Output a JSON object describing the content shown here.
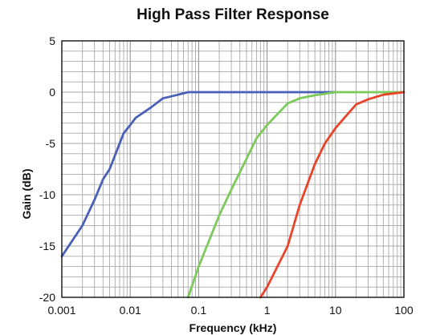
{
  "chart_data": {
    "type": "line",
    "title": "High Pass Filter Response",
    "xlabel": "Frequency (kHz)",
    "ylabel": "Gain (dB)",
    "x_scale": "log",
    "xlim": [
      0.001,
      100
    ],
    "ylim": [
      -20,
      5
    ],
    "x_ticks": [
      0.001,
      0.01,
      0.1,
      1,
      10,
      100
    ],
    "x_tick_labels": [
      "0.001",
      "0.01",
      "0.1",
      "1",
      "10",
      "100"
    ],
    "y_ticks": [
      5,
      0,
      -5,
      -10,
      -15,
      -20
    ],
    "y_tick_labels": [
      "5",
      "0",
      "-5",
      "-10",
      "-15",
      "-20"
    ],
    "grid": true,
    "legend": "none",
    "series": [
      {
        "color": "#4a5fb7",
        "x": [
          0.001,
          0.002,
          0.003,
          0.004,
          0.005,
          0.007,
          0.008,
          0.01,
          0.012,
          0.02,
          0.03,
          0.05,
          0.07,
          0.1,
          1,
          10
        ],
        "y": [
          -16,
          -13,
          -10.5,
          -8.5,
          -7.5,
          -5,
          -4,
          -3.2,
          -2.5,
          -1.5,
          -0.6,
          -0.25,
          0,
          0,
          0,
          0
        ]
      },
      {
        "color": "#7dc95a",
        "x": [
          0.07,
          0.1,
          0.2,
          0.3,
          0.5,
          0.7,
          1,
          2,
          3,
          5,
          10,
          100
        ],
        "y": [
          -20,
          -17,
          -12,
          -9.5,
          -6.5,
          -4.5,
          -3.2,
          -1.1,
          -0.6,
          -0.3,
          0,
          0
        ]
      },
      {
        "color": "#e8442a",
        "x": [
          0.8,
          1,
          2,
          3,
          5,
          7,
          10,
          20,
          30,
          50,
          100
        ],
        "y": [
          -20,
          -19,
          -15,
          -11,
          -7,
          -5,
          -3.5,
          -1.2,
          -0.7,
          -0.25,
          0
        ]
      }
    ]
  }
}
